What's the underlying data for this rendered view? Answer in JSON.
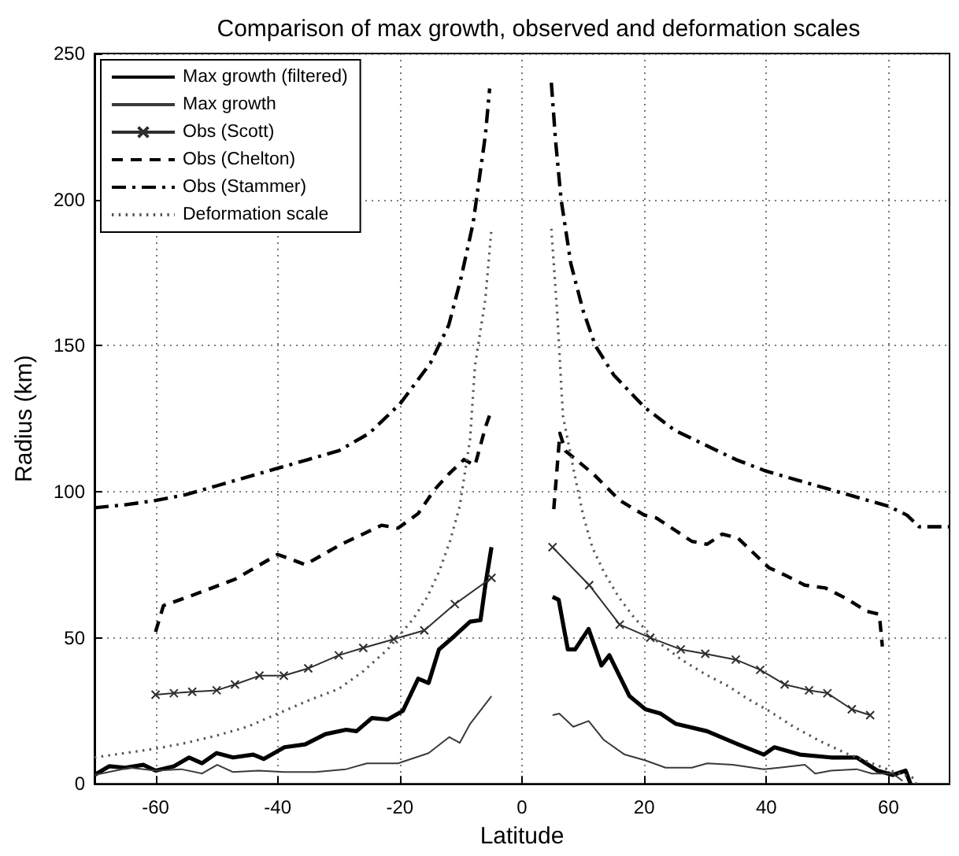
{
  "chart_data": {
    "type": "line",
    "title": "Comparison of max growth, observed and deformation scales",
    "xlabel": "Latitude",
    "ylabel": "Radius (km)",
    "xlim": [
      -70,
      70
    ],
    "xticks": [
      -60,
      -40,
      -20,
      0,
      20,
      40,
      60
    ],
    "ylim": [
      0,
      250
    ],
    "yticks": [
      0,
      50,
      100,
      150,
      200,
      250
    ],
    "grid": true,
    "legend": "top left",
    "series": [
      {
        "name": "Max growth (filtered)",
        "color": "#000000",
        "line_style": "solid",
        "x": [
          -70,
          -67.6,
          -65,
          -62,
          -60,
          -57,
          -54.5,
          -52.4,
          -50,
          -47.3,
          -44,
          -42.3,
          -38.9,
          -35.5,
          -32.2,
          -28.8,
          -27.1,
          -24.6,
          -22,
          -19.5,
          -17,
          -15.3,
          -13.6,
          -11.1,
          -8.5,
          -6.8,
          -6,
          -5,
          0,
          5,
          6,
          7.5,
          8.7,
          10.9,
          13,
          14.3,
          17.6,
          20.2,
          22.7,
          25.2,
          30.3,
          35.4,
          39.6,
          41.3,
          45.5,
          50.6,
          54.8,
          58.2,
          60.7,
          62.8,
          63.6
        ],
        "values": [
          3,
          6,
          5.5,
          6.5,
          4.5,
          6,
          9,
          7,
          10.5,
          9,
          10,
          8.5,
          12.5,
          13.5,
          17,
          18.5,
          18,
          22.5,
          22,
          25,
          36,
          34.5,
          46,
          50.5,
          55.5,
          56,
          68,
          81,
          null,
          64,
          63,
          46,
          46,
          53,
          40.5,
          44,
          30,
          25.5,
          24,
          20.5,
          18,
          13.5,
          10,
          12.5,
          10,
          9,
          9,
          4.5,
          3,
          4.5,
          0
        ]
      },
      {
        "name": "Max growth",
        "color": "#3a3a3a",
        "line_style": "solid",
        "x": [
          -70,
          -64.2,
          -60,
          -55.8,
          -52.4,
          -49.9,
          -47.3,
          -43.1,
          -38.9,
          -33.8,
          -28.8,
          -25.4,
          -20.3,
          -15.3,
          -11.9,
          -10.2,
          -8.5,
          -5,
          0,
          5,
          6.1,
          8.4,
          10.9,
          13.4,
          16.8,
          20.2,
          23.5,
          27.8,
          30.3,
          34.5,
          39.6,
          42.1,
          46.3,
          48,
          50.6,
          54.8,
          57.3,
          60.7,
          62.3
        ],
        "values": [
          3,
          5.5,
          4.5,
          5,
          3.5,
          6.5,
          4,
          4.5,
          4,
          4,
          5,
          7,
          7,
          10.5,
          16,
          14,
          20.5,
          30,
          null,
          23.5,
          24,
          19.5,
          21.5,
          15,
          10,
          8,
          5.5,
          5.5,
          7,
          6.5,
          5,
          5.5,
          6.5,
          3.5,
          4.5,
          5,
          3.5,
          3.5,
          1
        ]
      },
      {
        "name": "Obs (Scott)",
        "color": "#2e2e2e",
        "line_style": "solid",
        "marker": "cross",
        "x": [
          -60,
          -57,
          -54,
          -50,
          -47,
          -43,
          -39,
          -35,
          -30,
          -26,
          -21,
          -16,
          -11,
          -5,
          0,
          5,
          11,
          16,
          21,
          26,
          30,
          35,
          39,
          43,
          47,
          50,
          54,
          57
        ],
        "values": [
          30.5,
          31,
          31.5,
          32,
          34,
          37,
          37,
          39.5,
          44,
          46.5,
          49.5,
          52.5,
          61.5,
          70.5,
          null,
          81,
          68,
          54.5,
          50,
          46,
          44.5,
          42.5,
          39,
          34,
          32,
          31,
          25.5,
          23.5
        ]
      },
      {
        "name": "Obs (Chelton)",
        "color": "#000000",
        "line_style": "dashed",
        "x": [
          -60,
          -58.7,
          -54,
          -47,
          -40,
          -38,
          -35.5,
          -29.6,
          -26,
          -23,
          -20.3,
          -17,
          -14.4,
          -12,
          -9.5,
          -7.7,
          -6,
          -5,
          0,
          5.2,
          6.2,
          7.1,
          11.7,
          16,
          20,
          22,
          27.8,
          30.3,
          32.8,
          35.4,
          40.4,
          43,
          46.3,
          49.7,
          53,
          56.5,
          58.5,
          59
        ],
        "values": [
          52,
          61,
          64.5,
          70,
          78.5,
          77,
          75,
          82,
          85.5,
          88.5,
          87.5,
          92.5,
          100.5,
          106,
          111,
          109,
          122,
          128,
          null,
          94,
          120,
          114,
          106,
          97,
          92,
          91,
          83,
          82,
          85.5,
          84,
          74,
          71.5,
          68,
          67,
          63.5,
          59,
          58,
          47
        ]
      },
      {
        "name": "Obs (Stammer)",
        "color": "#000000",
        "line_style": "dashdot",
        "x": [
          -70,
          -65,
          -60,
          -55,
          -50,
          -45,
          -40,
          -35,
          -30,
          -25,
          -20,
          -15,
          -12,
          -10,
          -8,
          -6,
          -5.3,
          0,
          4.8,
          5.5,
          6.4,
          8,
          10,
          12,
          15,
          20,
          25,
          30,
          35,
          40,
          45,
          50,
          55,
          60,
          63,
          65,
          70
        ],
        "values": [
          94.5,
          95.5,
          97,
          99,
          102,
          105,
          108,
          111,
          114,
          120,
          130,
          144,
          157,
          173,
          192,
          222,
          238,
          null,
          240,
          220,
          200,
          178,
          162,
          150,
          140,
          129,
          121,
          116,
          111,
          107,
          104,
          101,
          98,
          95,
          92,
          88,
          88
        ]
      },
      {
        "name": "Deformation scale",
        "color": "#555555",
        "line_style": "dotted",
        "x": [
          -70,
          -65,
          -60,
          -55,
          -50,
          -45,
          -40,
          -35,
          -30,
          -26,
          -22,
          -20,
          -17.8,
          -15.5,
          -13.6,
          -11.8,
          -10.2,
          -8.5,
          -7.7,
          -6,
          -5,
          0,
          4.8,
          5.8,
          6.7,
          8.4,
          10,
          11.5,
          13.4,
          15.8,
          18.5,
          22,
          26.1,
          30,
          33.7,
          37,
          40.4,
          44.5,
          48.9,
          53,
          57.3,
          61,
          64.1,
          64.5
        ],
        "values": [
          9,
          10.5,
          12,
          14,
          16.5,
          19.5,
          24,
          28.5,
          32.5,
          38.5,
          46,
          51,
          56.5,
          64,
          72.5,
          83,
          95,
          118,
          143,
          166,
          190,
          null,
          190,
          160,
          126,
          108,
          92,
          81,
          72.5,
          64,
          56.5,
          49,
          42.5,
          37.5,
          33.5,
          29,
          25,
          19.5,
          14.5,
          10.5,
          7,
          4,
          2,
          0
        ]
      }
    ]
  }
}
